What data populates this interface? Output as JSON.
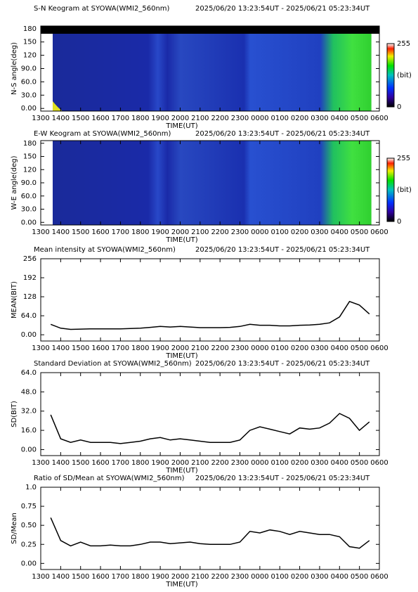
{
  "chart_data": [
    {
      "type": "image",
      "title": "S-N Keogram at SYOWA(WMI2_560nm)",
      "subtitle": "2025/06/20 13:23:54UT - 2025/06/21 05:23:34UT",
      "xlabel": "TIME(UT)",
      "ylabel": "N-S angle(deg)",
      "xticks": [
        "1300",
        "1400",
        "1500",
        "1600",
        "1700",
        "1800",
        "1900",
        "2000",
        "2100",
        "2200",
        "2300",
        "0000",
        "0100",
        "0200",
        "0300",
        "0400",
        "0500",
        "0600"
      ],
      "ylim": [
        -6,
        186
      ],
      "yticks": [
        {
          "value": 0,
          "label": "0.00"
        },
        {
          "value": 30,
          "label": "30.0"
        },
        {
          "value": 60,
          "label": "60.0"
        },
        {
          "value": 90,
          "label": "90.0"
        },
        120,
        150,
        180
      ],
      "colorbar": {
        "ticks": [
          0,
          255
        ],
        "label": "(bit)"
      }
    },
    {
      "type": "image",
      "title": "E-W Keogram at SYOWA(WMI2_560nm)",
      "subtitle": "2025/06/20 13:23:54UT - 2025/06/21 05:23:34UT",
      "xlabel": "TIME(UT)",
      "ylabel": "W-E angle(deg)",
      "xticks": [
        "1300",
        "1400",
        "1500",
        "1600",
        "1700",
        "1800",
        "1900",
        "2000",
        "2100",
        "2200",
        "2300",
        "0000",
        "0100",
        "0200",
        "0300",
        "0400",
        "0500",
        "0600"
      ],
      "ylim": [
        -6,
        186
      ],
      "yticks": [
        {
          "value": 0,
          "label": "0.00"
        },
        {
          "value": 30,
          "label": "30.0"
        },
        {
          "value": 60,
          "label": "60.0"
        },
        {
          "value": 90,
          "label": "90.0"
        },
        120,
        150,
        180
      ],
      "colorbar": {
        "ticks": [
          0,
          255
        ],
        "label": "(bit)"
      }
    },
    {
      "type": "line",
      "title": "Mean intensity at SYOWA(WMI2_560nm)",
      "subtitle": "2025/06/20 13:23:54UT - 2025/06/21 05:23:34UT",
      "xlabel": "TIME(UT)",
      "ylabel": "MEAN(BIT)",
      "color": "#000000",
      "xticks": [
        "1300",
        "1400",
        "1500",
        "1600",
        "1700",
        "1800",
        "1900",
        "2000",
        "2100",
        "2200",
        "2300",
        "0000",
        "0100",
        "0200",
        "0300",
        "0400",
        "0500",
        "0600"
      ],
      "ylim": [
        -21,
        256
      ],
      "yticks": [
        {
          "value": 0,
          "label": "0.00"
        },
        {
          "value": 64,
          "label": "64.0"
        },
        128,
        192,
        256
      ],
      "values": [
        35,
        22,
        18,
        19,
        20,
        20,
        20,
        20,
        21,
        22,
        25,
        28,
        26,
        28,
        26,
        24,
        24,
        24,
        25,
        28,
        35,
        32,
        32,
        30,
        30,
        32,
        33,
        35,
        40,
        60,
        112,
        100,
        70
      ]
    },
    {
      "type": "line",
      "title": "Standard Deviation at SYOWA(WMI2_560nm)",
      "subtitle": "2025/06/20 13:23:54UT - 2025/06/21 05:23:34UT",
      "xlabel": "TIME(UT)",
      "ylabel": "SD(BIT)",
      "color": "#000000",
      "xticks": [
        "1300",
        "1400",
        "1500",
        "1600",
        "1700",
        "1800",
        "1900",
        "2000",
        "2100",
        "2200",
        "2300",
        "0000",
        "0100",
        "0200",
        "0300",
        "0400",
        "0500",
        "0600"
      ],
      "ylim": [
        -5,
        64
      ],
      "yticks": [
        {
          "value": 0,
          "label": "0.00"
        },
        {
          "value": 16,
          "label": "16.0"
        },
        {
          "value": 32,
          "label": "32.0"
        },
        {
          "value": 48,
          "label": "48.0"
        },
        {
          "value": 64,
          "label": "64.0"
        }
      ],
      "values": [
        29,
        9,
        6,
        8,
        6,
        6,
        6,
        5,
        6,
        7,
        9,
        10,
        8,
        9,
        8,
        7,
        6,
        6,
        6,
        8,
        16,
        19,
        17,
        15,
        13,
        18,
        17,
        18,
        22,
        30,
        26,
        16,
        23
      ]
    },
    {
      "type": "line",
      "title": "Ratio of SD/Mean at SYOWA(WMI2_560nm)",
      "subtitle": "2025/06/20 13:23:54UT - 2025/06/21 05:23:34UT",
      "xlabel": "TIME(UT)",
      "ylabel": "SD/Mean",
      "color": "#000000",
      "xticks": [
        "1300",
        "1400",
        "1500",
        "1600",
        "1700",
        "1800",
        "1900",
        "2000",
        "2100",
        "2200",
        "2300",
        "0000",
        "0100",
        "0200",
        "0300",
        "0400",
        "0500",
        "0600"
      ],
      "ylim": [
        -0.08,
        1
      ],
      "yticks": [
        {
          "value": 0,
          "label": "0.00"
        },
        0.25,
        {
          "value": 0.5,
          "label": "0.50"
        },
        0.75,
        {
          "value": 1,
          "label": "1.0"
        }
      ],
      "values": [
        0.6,
        0.3,
        0.23,
        0.28,
        0.23,
        0.23,
        0.24,
        0.23,
        0.23,
        0.25,
        0.28,
        0.28,
        0.26,
        0.27,
        0.28,
        0.26,
        0.25,
        0.25,
        0.25,
        0.28,
        0.42,
        0.4,
        0.44,
        0.42,
        0.38,
        0.42,
        0.4,
        0.38,
        0.38,
        0.35,
        0.22,
        0.2,
        0.3
      ]
    }
  ]
}
